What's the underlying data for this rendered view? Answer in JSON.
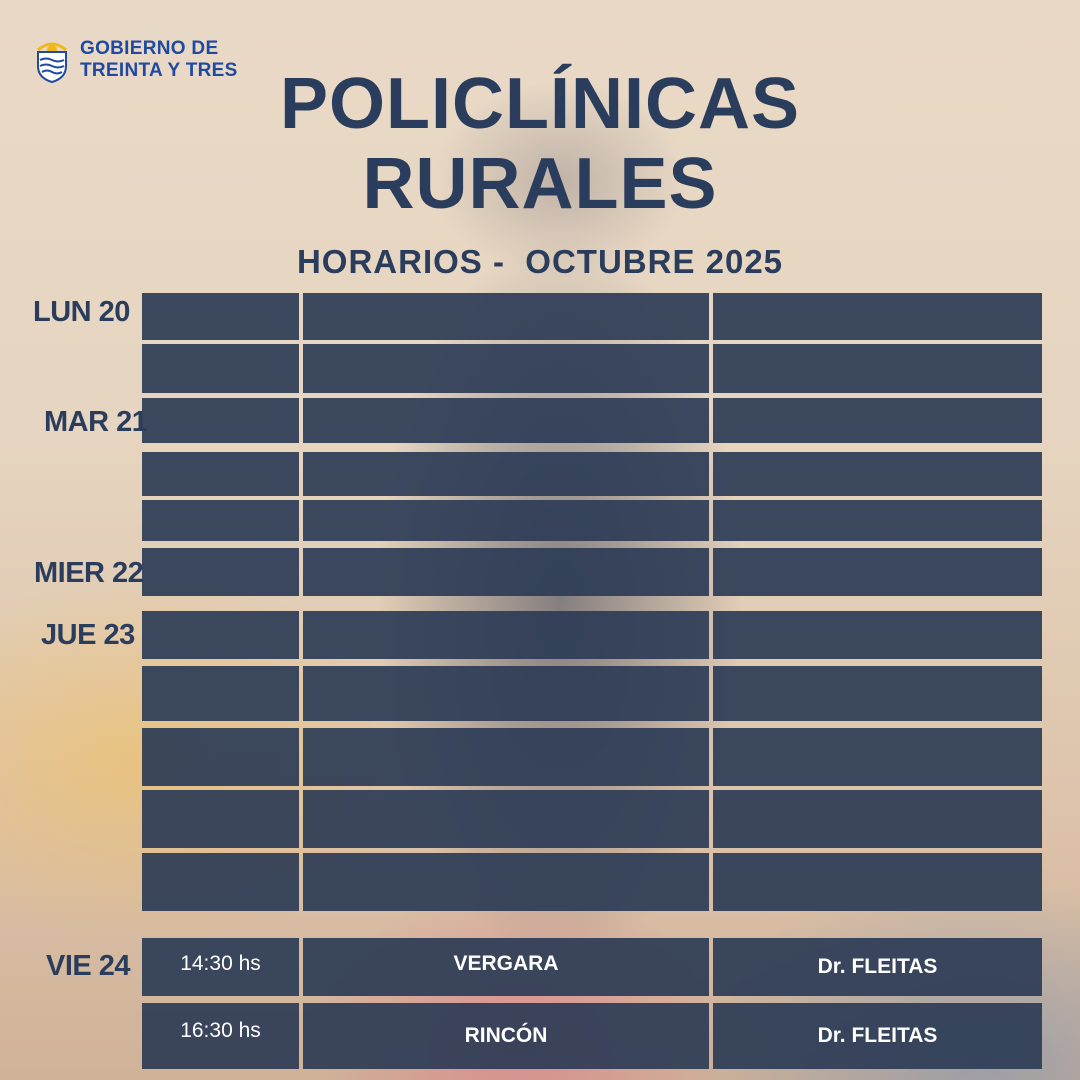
{
  "logo": {
    "line1": "GOBIERNO DE",
    "line2": "TREINTA Y TRES"
  },
  "title": {
    "line1": "POLICLÍNICAS",
    "line2": "RURALES"
  },
  "subtitle": "HORARIOS -  OCTUBRE 2025",
  "days": {
    "lun": "LUN 20",
    "mar": "MAR 21",
    "mier": "MIER 22",
    "jue": "JUE 23",
    "vie": "VIE 24"
  },
  "schedule": {
    "vie_row1": {
      "time": "14:30 hs",
      "place": "VERGARA",
      "doctor": "Dr.  FLEITAS"
    },
    "vie_row2": {
      "time": "16:30 hs",
      "place": "RINCÓN",
      "doctor": "Dr. FLEITAS"
    }
  },
  "colors": {
    "title": "#2b3d5c",
    "cell": "#2c3c56",
    "logo": "#1f4aa0"
  }
}
